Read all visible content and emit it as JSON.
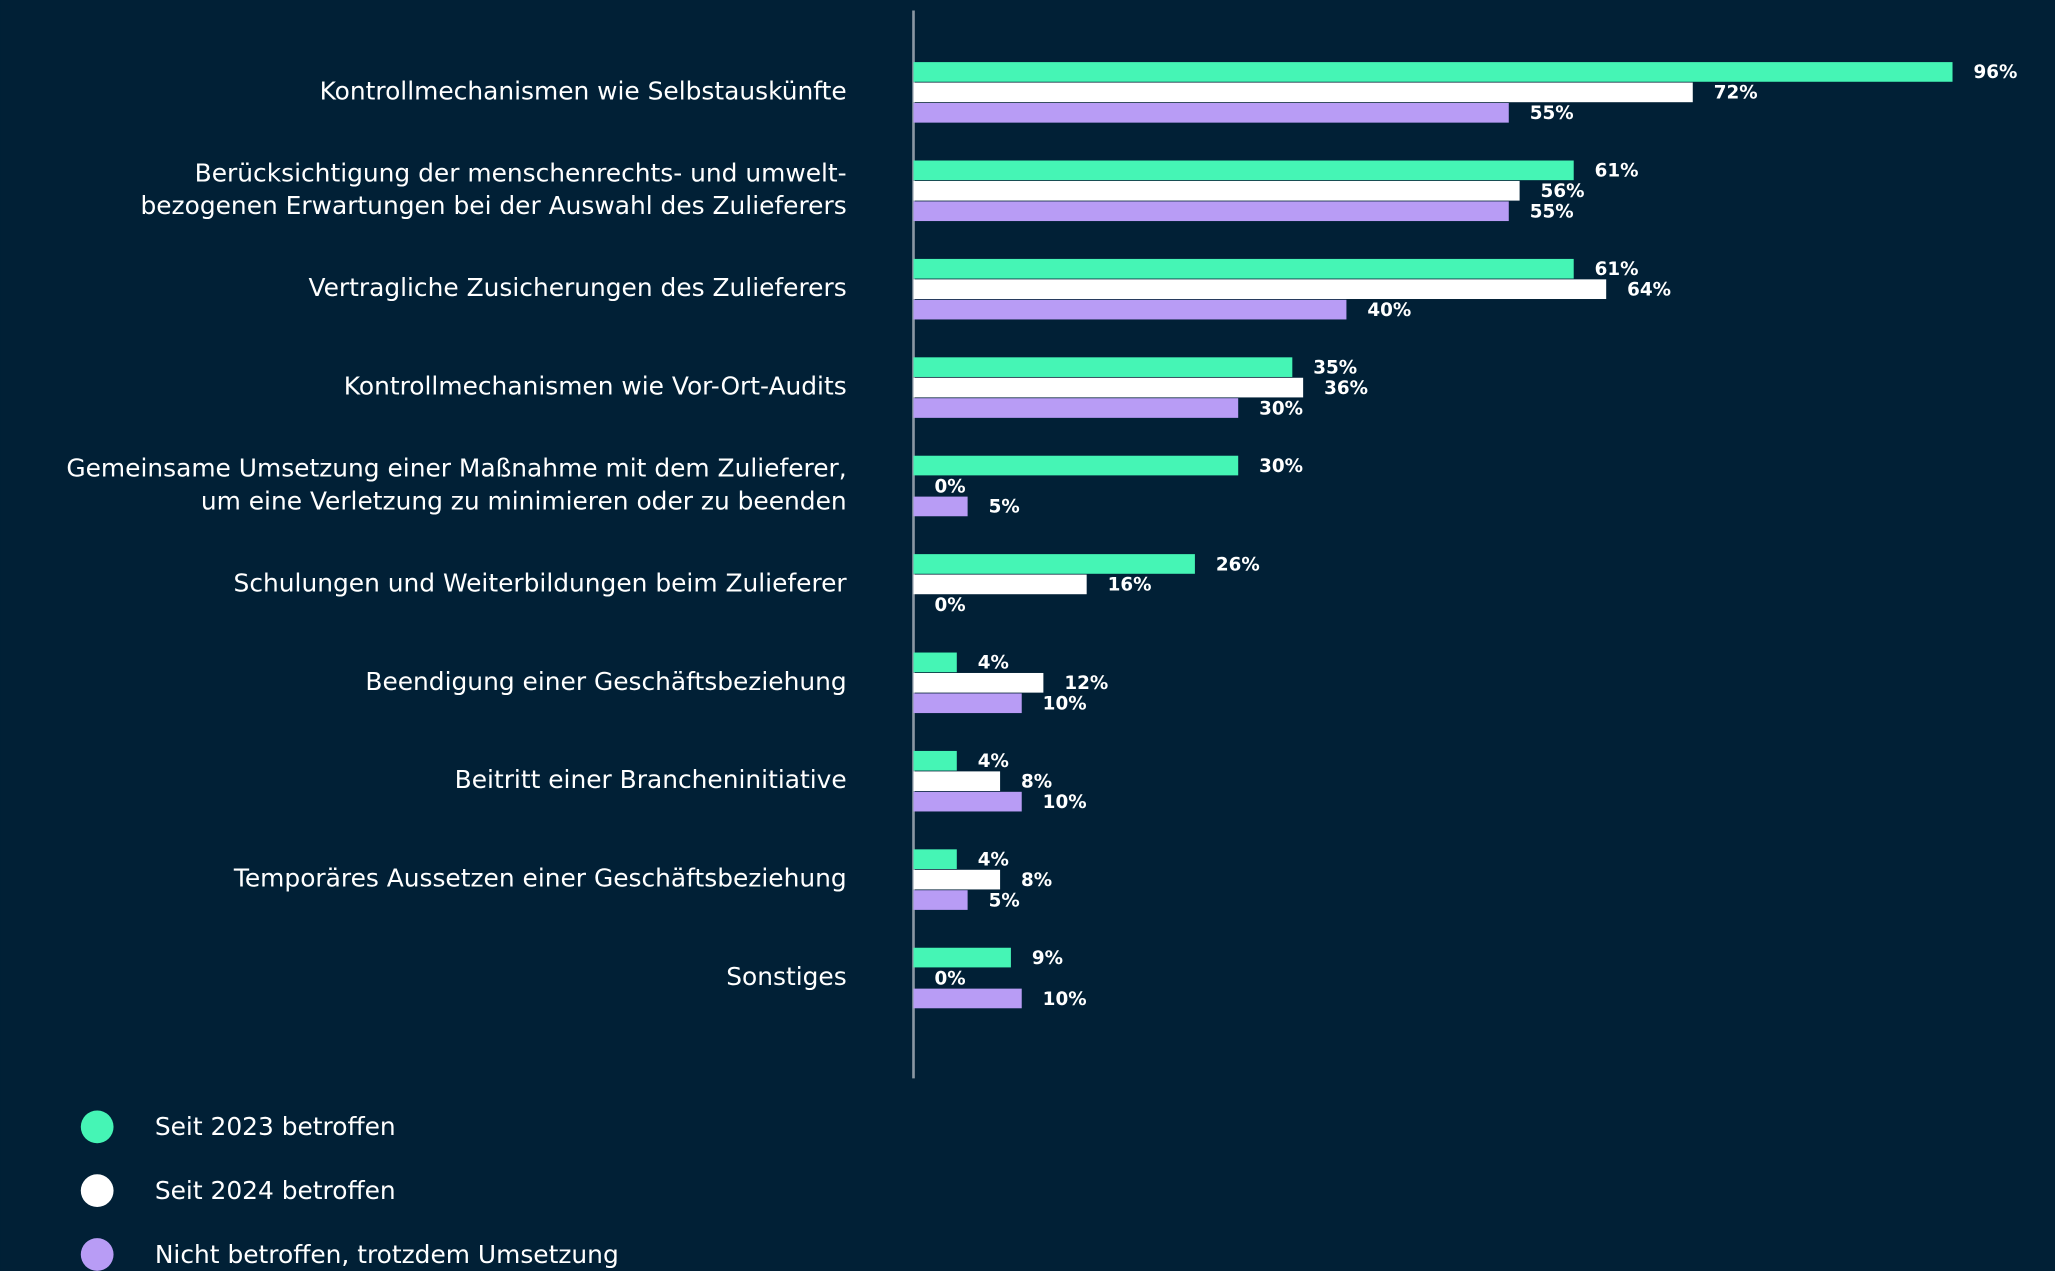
{
  "chart_data": {
    "type": "bar",
    "orientation": "horizontal",
    "categories": [
      "Kontrollmechanismen wie Selbstauskünfte",
      "Berücksichtigung der menschenrechts- und umwelt-\nbezogenen Erwartungen bei der Auswahl des Zulieferers",
      "Vertragliche Zusicherungen des Zulieferers",
      "Kontrollmechanismen wie Vor-Ort-Audits",
      "Gemeinsame Umsetzung einer Maßnahme mit dem Zulieferer,\num eine Verletzung zu minimieren oder zu beenden",
      "Schulungen und Weiterbildungen beim Zulieferer",
      "Beendigung einer Geschäftsbeziehung",
      "Beitritt einer Brancheninitiative",
      "Temporäres Aussetzen einer Geschäftsbeziehung",
      "Sonstiges"
    ],
    "series": [
      {
        "name": "Seit 2023 betroffen",
        "color": "#45f5b5",
        "values": [
          96,
          61,
          61,
          35,
          30,
          26,
          4,
          4,
          4,
          9
        ],
        "value_labels": [
          "96%",
          "61%",
          "61%",
          "35%",
          "30%",
          "26%",
          "4%",
          "4%",
          "4%",
          "9%"
        ]
      },
      {
        "name": "Seit 2024 betroffen",
        "color": "#ffffff",
        "values": [
          72,
          56,
          64,
          36,
          0,
          16,
          12,
          8,
          8,
          0
        ],
        "value_labels": [
          "72%",
          "56%",
          "64%",
          "36%",
          "0%",
          "16%",
          "12%",
          "8%",
          "8%",
          "0%"
        ]
      },
      {
        "name": "Nicht betroffen, trotzdem Umsetzung",
        "color": "#b89cf5",
        "values": [
          55,
          55,
          40,
          30,
          5,
          0,
          10,
          10,
          5,
          10
        ],
        "value_labels": [
          "55%",
          "55%",
          "40%",
          "30%",
          "5%",
          "0%",
          "10%",
          "10%",
          "5%",
          "10%"
        ]
      }
    ],
    "xlim": [
      0,
      100
    ],
    "legend": "bottom-left"
  }
}
